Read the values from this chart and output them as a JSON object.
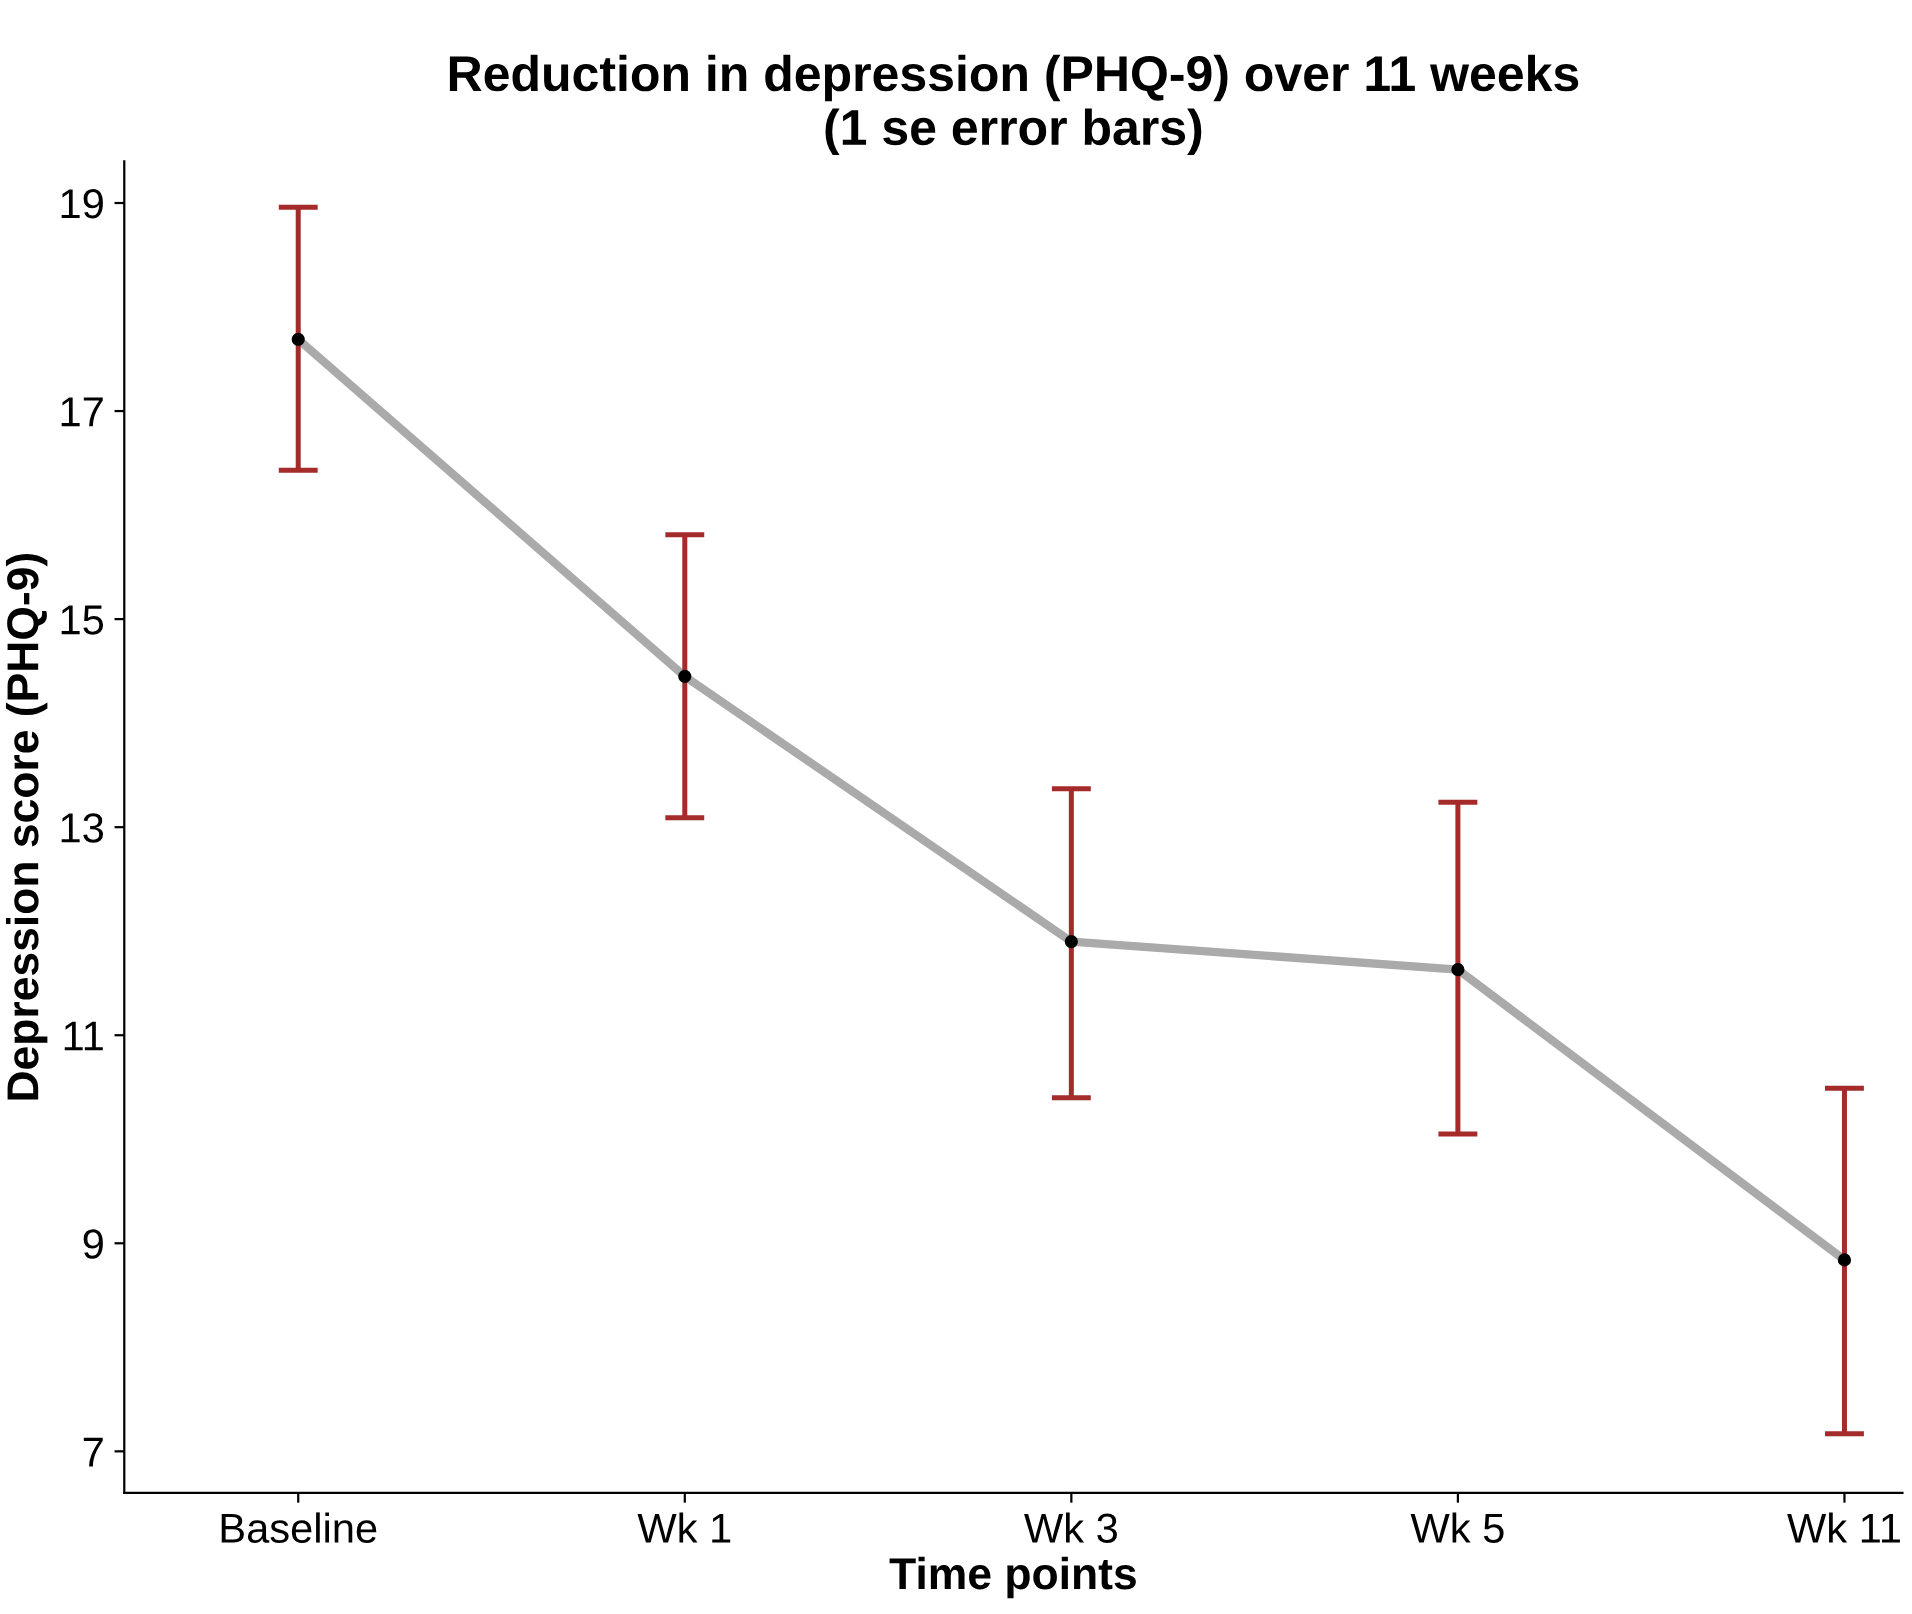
{
  "chart_data": {
    "type": "line",
    "title": "Reduction in depression (PHQ-9) over 11 weeks\n(1 se error bars)",
    "xlabel": "Time points",
    "ylabel": "Depression score (PHQ-9)",
    "categories": [
      "Baseline",
      "Wk 1",
      "Wk 3",
      "Wk 5",
      "Wk 11"
    ],
    "series": [
      {
        "color": "#aaaaaa",
        "values": [
          17.69,
          14.45,
          11.9,
          11.63,
          8.84
        ],
        "errors": [
          [
            16.43,
            18.96
          ],
          [
            13.09,
            15.81
          ],
          [
            10.4,
            13.37
          ],
          [
            10.05,
            13.24
          ],
          [
            7.17,
            10.49
          ]
        ]
      }
    ],
    "ylim": [
      6.6,
      19.4
    ],
    "yticks": [
      7,
      9,
      11,
      13,
      15,
      17,
      19
    ],
    "grid": false,
    "legend": false,
    "marker": "circle",
    "line_style": "solid"
  }
}
